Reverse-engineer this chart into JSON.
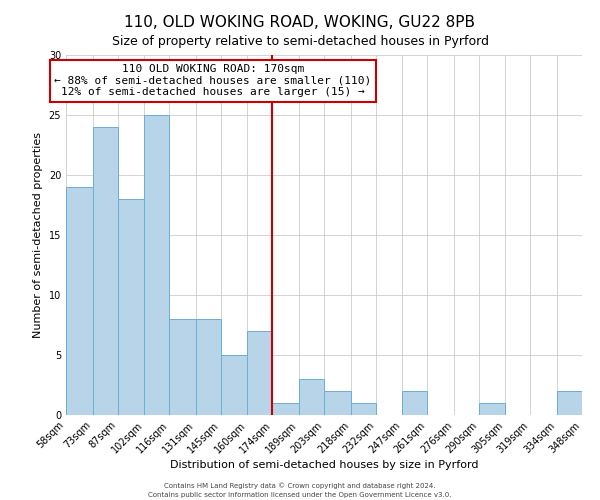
{
  "title": "110, OLD WOKING ROAD, WOKING, GU22 8PB",
  "subtitle": "Size of property relative to semi-detached houses in Pyrford",
  "xlabel": "Distribution of semi-detached houses by size in Pyrford",
  "ylabel": "Number of semi-detached properties",
  "footer_line1": "Contains HM Land Registry data © Crown copyright and database right 2024.",
  "footer_line2": "Contains public sector information licensed under the Open Government Licence v3.0.",
  "bin_labels": [
    "58sqm",
    "73sqm",
    "87sqm",
    "102sqm",
    "116sqm",
    "131sqm",
    "145sqm",
    "160sqm",
    "174sqm",
    "189sqm",
    "203sqm",
    "218sqm",
    "232sqm",
    "247sqm",
    "261sqm",
    "276sqm",
    "290sqm",
    "305sqm",
    "319sqm",
    "334sqm",
    "348sqm"
  ],
  "bin_edges": [
    58,
    73,
    87,
    102,
    116,
    131,
    145,
    160,
    174,
    189,
    203,
    218,
    232,
    247,
    261,
    276,
    290,
    305,
    319,
    334,
    348
  ],
  "counts": [
    19,
    24,
    18,
    25,
    8,
    8,
    5,
    7,
    1,
    3,
    2,
    1,
    0,
    2,
    0,
    0,
    1,
    0,
    0,
    2
  ],
  "bar_color": "#b8d4e8",
  "bar_edgecolor": "#6aaed6",
  "property_line_x": 174,
  "property_line_color": "#cc0000",
  "annotation_line1": "110 OLD WOKING ROAD: 170sqm",
  "annotation_line2": "← 88% of semi-detached houses are smaller (110)",
  "annotation_line3": "12% of semi-detached houses are larger (15) →",
  "annotation_box_edgecolor": "#cc0000",
  "ylim": [
    0,
    30
  ],
  "yticks": [
    0,
    5,
    10,
    15,
    20,
    25,
    30
  ],
  "background_color": "#ffffff",
  "grid_color": "#cccccc",
  "title_fontsize": 11,
  "subtitle_fontsize": 9,
  "annotation_fontsize": 8,
  "axis_label_fontsize": 8,
  "tick_fontsize": 7,
  "footer_fontsize": 5
}
